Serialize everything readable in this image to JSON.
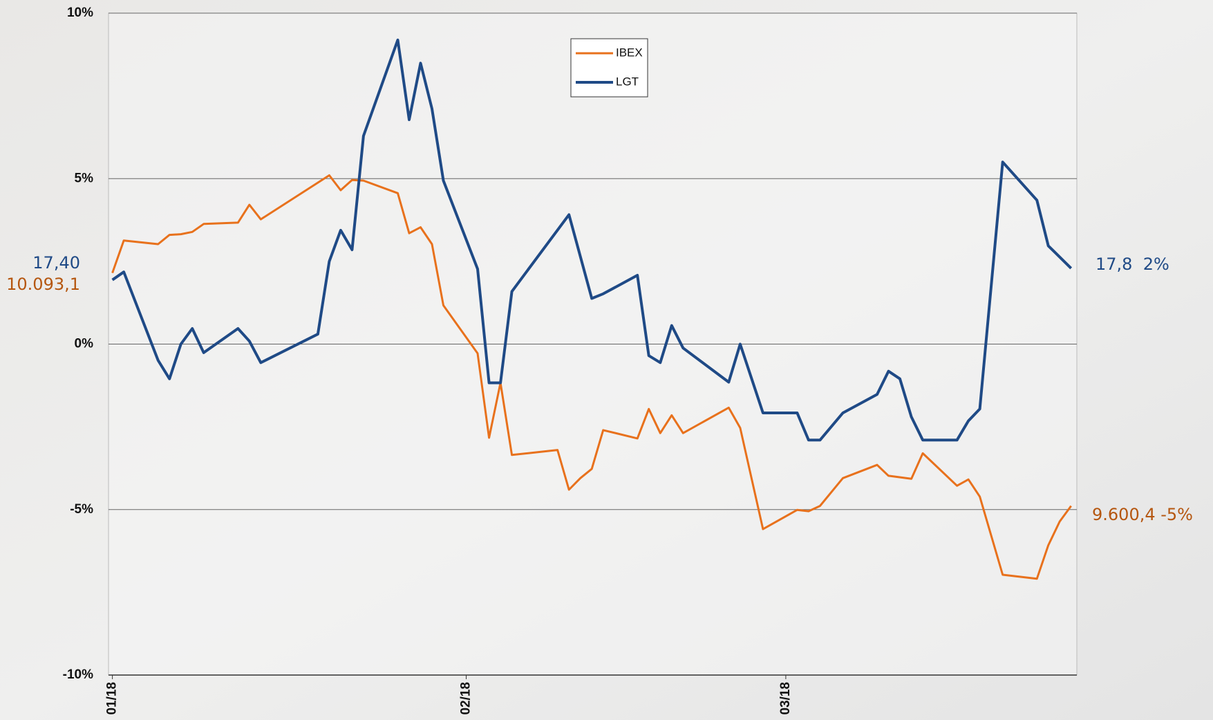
{
  "chart_data": {
    "type": "line",
    "ylim": [
      -10,
      10
    ],
    "yticks": [
      {
        "value": 10,
        "label": "10%"
      },
      {
        "value": 5,
        "label": "5%"
      },
      {
        "value": 0,
        "label": "0%"
      },
      {
        "value": -5,
        "label": "-5%"
      },
      {
        "value": -10,
        "label": "-10%"
      }
    ],
    "xlim": [
      -0.34,
      84.5
    ],
    "xticks": [
      {
        "value": 0,
        "label": "01/18"
      },
      {
        "value": 31,
        "label": "02/18"
      },
      {
        "value": 59,
        "label": "03/18"
      }
    ],
    "grid": true,
    "legend": "top-center",
    "series": [
      {
        "name": "IBEX",
        "color": "#e8711c",
        "x": [
          0,
          1,
          4,
          5,
          6,
          7,
          8,
          11,
          12,
          13,
          19,
          20,
          21,
          22,
          25,
          26,
          27,
          28,
          29,
          32,
          33,
          34,
          35,
          39,
          40,
          41,
          42,
          43,
          46,
          47,
          48,
          49,
          50,
          54,
          55,
          57,
          60,
          61,
          62,
          64,
          67,
          68,
          70,
          71,
          74,
          75,
          76,
          78,
          81,
          82,
          83,
          84
        ],
        "values": [
          2.15,
          3.13,
          3.02,
          3.3,
          3.32,
          3.39,
          3.63,
          3.67,
          4.21,
          3.77,
          5.1,
          4.65,
          4.96,
          4.94,
          4.56,
          3.35,
          3.53,
          3.02,
          1.17,
          -0.28,
          -2.83,
          -1.17,
          -3.35,
          -3.2,
          -4.4,
          -4.05,
          -3.77,
          -2.6,
          -2.85,
          -1.96,
          -2.69,
          -2.15,
          -2.69,
          -1.92,
          -2.53,
          -5.59,
          -5.01,
          -5.05,
          -4.89,
          -4.05,
          -3.65,
          -3.98,
          -4.07,
          -3.3,
          -4.28,
          -4.09,
          -4.61,
          -6.97,
          -7.09,
          -6.08,
          -5.36,
          -4.89
        ]
      },
      {
        "name": "LGT",
        "color": "#1f4a86",
        "x": [
          0,
          1,
          4,
          5,
          6,
          7,
          8,
          11,
          12,
          13,
          18,
          19,
          20,
          21,
          22,
          25,
          26,
          27,
          28,
          29,
          32,
          33,
          34,
          35,
          40,
          42,
          43,
          46,
          47,
          48,
          49,
          50,
          54,
          55,
          57,
          60,
          61,
          62,
          64,
          67,
          68,
          69,
          70,
          71,
          74,
          75,
          76,
          78,
          81,
          82,
          84
        ],
        "values": [
          1.94,
          2.18,
          -0.49,
          -1.05,
          0,
          0.47,
          -0.26,
          0.47,
          0.09,
          -0.56,
          0.3,
          2.5,
          3.44,
          2.85,
          6.29,
          9.19,
          6.78,
          8.49,
          7.11,
          4.94,
          2.27,
          -1.17,
          -1.17,
          1.59,
          3.91,
          1.38,
          1.52,
          2.08,
          -0.35,
          -0.56,
          0.56,
          -0.12,
          -1.15,
          0,
          -2.08,
          -2.08,
          -2.9,
          -2.9,
          -2.08,
          -1.52,
          -0.82,
          -1.05,
          -2.2,
          -2.9,
          -2.9,
          -2.32,
          -1.96,
          5.5,
          4.35,
          2.97,
          2.29
        ]
      }
    ],
    "annotations": [
      {
        "text": "17,40",
        "color": "#1f4a86"
      },
      {
        "text": "10.093,1",
        "color": "#b5560f"
      },
      {
        "text": "17,8  2%",
        "color": "#1f4a86"
      },
      {
        "text": "9.600,4 -5%",
        "color": "#b5560f"
      }
    ]
  }
}
